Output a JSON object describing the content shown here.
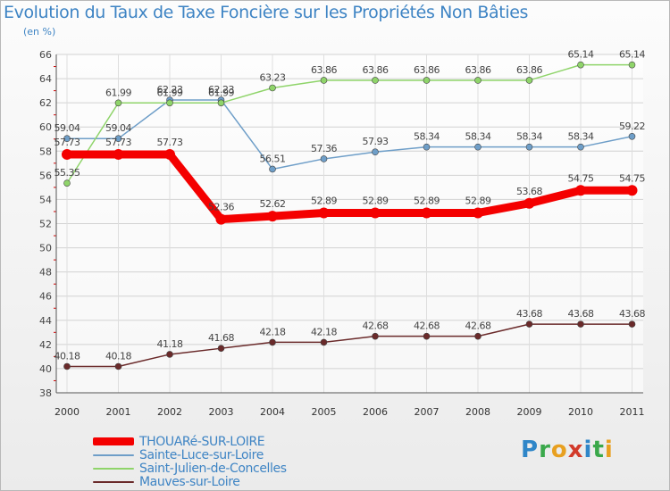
{
  "header": {
    "title": "Evolution du Taux de Taxe Foncière sur les Propriétés Non Bâties",
    "unit": "(en %)"
  },
  "brand": {
    "name": "Proxiti"
  },
  "chart_data": {
    "type": "line",
    "title": "Evolution du Taux de Taxe Foncière sur les Propriétés Non Bâties",
    "ylabel": "(en %)",
    "xlabel": "",
    "ylim": [
      38,
      66
    ],
    "yticks": [
      38,
      40,
      42,
      44,
      46,
      48,
      50,
      52,
      54,
      56,
      58,
      60,
      62,
      64,
      66
    ],
    "grid": true,
    "legend_position": "bottom-left",
    "categories": [
      "2000",
      "2001",
      "2002",
      "2003",
      "2004",
      "2005",
      "2006",
      "2007",
      "2008",
      "2009",
      "2010",
      "2011"
    ],
    "series": [
      {
        "name": "THOUARé-SUR-LOIRE",
        "color": "#f40000",
        "values": [
          57.73,
          57.73,
          57.73,
          52.36,
          52.62,
          52.89,
          52.89,
          52.89,
          52.89,
          53.68,
          54.75,
          54.75
        ],
        "labels": [
          "57.73",
          "57.73",
          "57.73",
          "52.36",
          "52.62",
          "52.89",
          "52.89",
          "52.89",
          "52.89",
          "53.68",
          "54.75",
          "54.75"
        ]
      },
      {
        "name": "Sainte-Luce-sur-Loire",
        "color": "#6e9ec8",
        "values": [
          59.04,
          59.04,
          62.23,
          62.23,
          56.51,
          57.36,
          57.93,
          58.34,
          58.34,
          58.34,
          58.34,
          59.22
        ],
        "labels": [
          "59.04",
          "59.04",
          "62.23",
          "62.23",
          "56.51",
          "57.36",
          "57.93",
          "58.34",
          "58.34",
          "58.34",
          "58.34",
          "59.22"
        ]
      },
      {
        "name": "Saint-Julien-de-Concelles",
        "color": "#8fd46a",
        "values": [
          55.35,
          61.99,
          61.99,
          61.99,
          63.23,
          63.86,
          63.86,
          63.86,
          63.86,
          63.86,
          65.14,
          65.14
        ],
        "labels": [
          "55.35",
          "61.99",
          "61.99",
          "61.99",
          "63.23",
          "63.86",
          "63.86",
          "63.86",
          "63.86",
          "63.86",
          "65.14",
          "65.14"
        ]
      },
      {
        "name": "Mauves-sur-Loire",
        "color": "#6a2a2a",
        "values": [
          40.18,
          40.18,
          41.18,
          41.68,
          42.18,
          42.18,
          42.68,
          42.68,
          42.68,
          43.68,
          43.68,
          43.68
        ],
        "labels": [
          "40.18",
          "40.18",
          "41.18",
          "41.68",
          "42.18",
          "42.18",
          "42.68",
          "42.68",
          "42.68",
          "43.68",
          "43.68",
          "43.68"
        ]
      }
    ]
  }
}
